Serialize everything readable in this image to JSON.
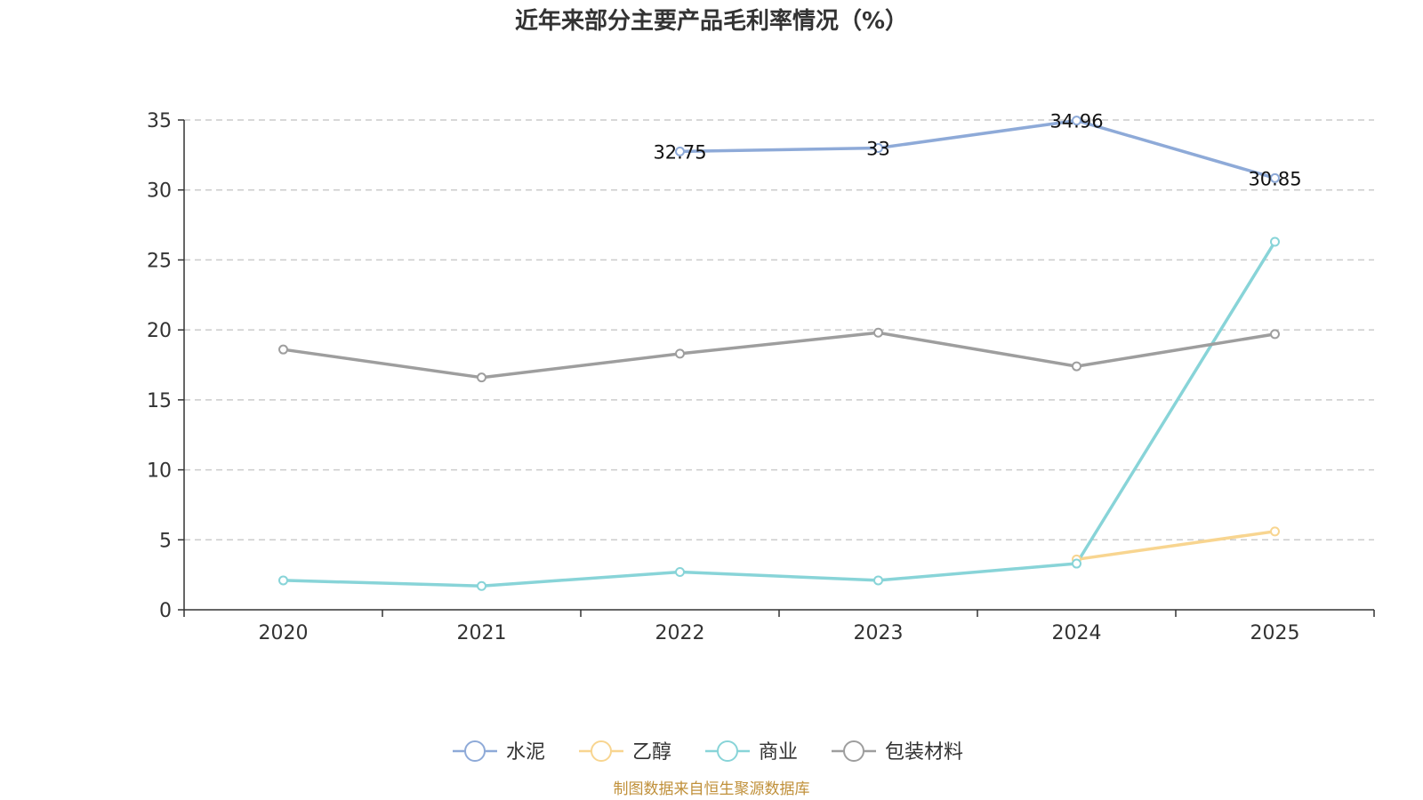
{
  "chart_data": {
    "type": "line",
    "title": "近年来部分主要产品毛利率情况（%）",
    "categories": [
      "2020",
      "2021",
      "2022",
      "2023",
      "2024",
      "2025"
    ],
    "ylim": [
      0,
      35
    ],
    "yticks": [
      "0",
      "5",
      "10",
      "15",
      "20",
      "25",
      "30",
      "35"
    ],
    "grid": true,
    "legend_position": "bottom",
    "series": [
      {
        "name": "水泥",
        "color": "#8eaad8",
        "values": [
          null,
          null,
          32.75,
          33,
          34.96,
          30.85
        ],
        "labels": [
          "",
          "",
          "32.75",
          "33",
          "34.96",
          "30.85"
        ]
      },
      {
        "name": "乙醇",
        "color": "#f8d590",
        "values": [
          null,
          null,
          null,
          null,
          3.6,
          5.6
        ],
        "labels": [
          "",
          "",
          "",
          "",
          "",
          ""
        ]
      },
      {
        "name": "商业",
        "color": "#88d4d8",
        "values": [
          2.1,
          1.7,
          2.7,
          2.1,
          3.3,
          26.3
        ],
        "labels": [
          "",
          "",
          "",
          "",
          "",
          ""
        ]
      },
      {
        "name": "包装材料",
        "color": "#9e9e9e",
        "values": [
          18.6,
          16.6,
          18.3,
          19.8,
          17.4,
          19.7
        ],
        "labels": [
          "",
          "",
          "",
          "",
          "",
          ""
        ]
      }
    ]
  },
  "source_note": "制图数据来自恒生聚源数据库"
}
